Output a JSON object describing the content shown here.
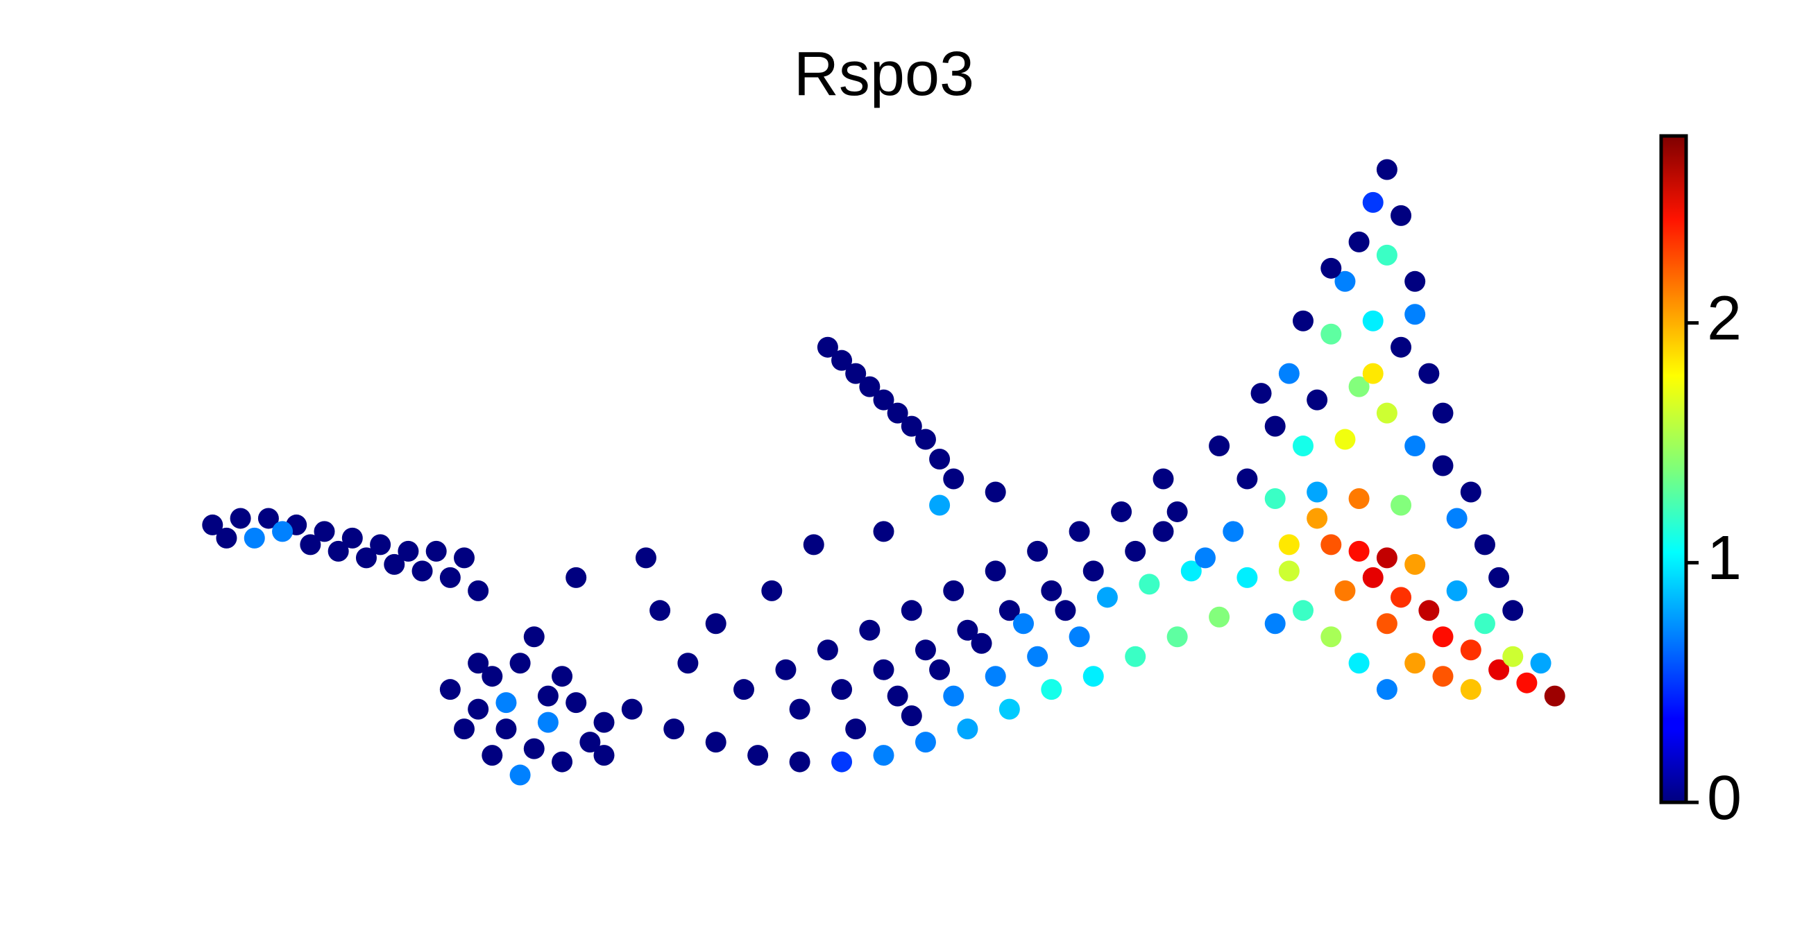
{
  "chart_data": {
    "type": "scatter",
    "title": "Rspo3",
    "colormap": "jet",
    "clim": [
      0,
      2.78
    ],
    "cticks": [
      0,
      1,
      2
    ],
    "xlim": [
      0,
      100
    ],
    "ylim": [
      0,
      100
    ],
    "x": [
      2,
      4,
      6,
      8,
      10,
      12,
      14,
      16,
      18,
      20,
      3,
      5,
      7,
      9,
      11,
      13,
      15,
      17,
      19,
      21,
      19,
      21,
      23,
      25,
      27,
      29,
      30,
      26,
      22,
      24,
      20,
      22,
      24,
      26,
      28,
      23,
      21,
      25,
      27,
      30,
      32,
      35,
      38,
      41,
      44,
      47,
      50,
      53,
      56,
      59,
      62,
      65,
      68,
      71,
      74,
      52,
      55,
      58,
      61,
      64,
      40,
      43,
      46,
      49,
      52,
      55,
      58,
      61,
      64,
      67,
      44,
      47,
      50,
      53,
      56,
      59,
      62,
      65,
      68,
      70,
      48,
      51,
      54,
      57,
      60,
      63,
      66,
      69,
      72,
      70,
      28,
      34,
      38,
      33,
      42,
      45,
      50,
      54,
      58,
      36,
      46,
      47,
      48,
      49,
      50,
      51,
      52,
      53,
      54,
      55,
      86,
      85,
      87,
      84,
      86,
      88,
      83,
      80,
      82,
      85,
      87,
      89,
      79,
      81,
      84,
      86,
      78,
      80,
      83,
      88,
      90,
      76,
      78,
      81,
      84,
      87,
      91,
      93,
      75,
      79,
      82,
      84,
      86,
      88,
      85,
      83,
      87,
      89,
      86,
      90,
      92,
      94,
      96,
      98,
      95,
      93,
      91,
      95,
      97,
      80,
      78,
      82,
      84,
      88,
      90,
      92,
      86,
      76,
      79,
      81,
      94,
      92,
      90,
      88,
      85,
      73,
      71,
      74,
      77,
      82
    ],
    "y": [
      43,
      44,
      44,
      43,
      42,
      41,
      40,
      39,
      39,
      38,
      41,
      41,
      42,
      40,
      39,
      38,
      37,
      36,
      35,
      33,
      18,
      15,
      12,
      9,
      7,
      10,
      13,
      17,
      20,
      22,
      12,
      8,
      5,
      13,
      16,
      16,
      22,
      26,
      20,
      8,
      15,
      12,
      10,
      8,
      7,
      7,
      8,
      10,
      12,
      15,
      18,
      20,
      23,
      26,
      29,
      14,
      17,
      20,
      23,
      26,
      18,
      21,
      24,
      27,
      30,
      33,
      36,
      39,
      42,
      45,
      15,
      18,
      21,
      24,
      27,
      30,
      33,
      36,
      39,
      42,
      12,
      17,
      21,
      25,
      28,
      30,
      32,
      34,
      36,
      50,
      35,
      30,
      28,
      38,
      33,
      40,
      42,
      46,
      48,
      22,
      70,
      68,
      66,
      64,
      62,
      60,
      58,
      56,
      53,
      50,
      97,
      92,
      90,
      86,
      84,
      80,
      80,
      74,
      72,
      74,
      70,
      66,
      66,
      62,
      64,
      60,
      58,
      55,
      56,
      55,
      52,
      50,
      47,
      48,
      47,
      46,
      44,
      40,
      42,
      40,
      40,
      39,
      38,
      37,
      35,
      33,
      32,
      30,
      28,
      26,
      24,
      21,
      19,
      17,
      23,
      28,
      33,
      30,
      22,
      30,
      28,
      26,
      22,
      22,
      20,
      18,
      18,
      35,
      36,
      44,
      35,
      48,
      60,
      75,
      66,
      38,
      45,
      55,
      63,
      82
    ],
    "values": [
      0,
      0,
      0,
      0,
      0,
      0,
      0,
      0,
      0,
      0,
      0,
      0.7,
      0.7,
      0,
      0,
      0,
      0,
      0,
      0,
      0,
      0,
      0,
      0,
      0,
      0,
      0,
      0,
      0,
      0,
      0,
      0,
      0,
      0.7,
      0.7,
      0,
      0.7,
      0,
      0,
      0,
      0,
      0,
      0,
      0,
      0,
      0,
      0.5,
      0.7,
      0.7,
      0.8,
      0.9,
      1.1,
      1.0,
      1.2,
      1.3,
      1.4,
      0,
      0.7,
      0.7,
      0.7,
      0.7,
      0,
      0,
      0,
      0,
      0,
      0,
      0,
      0,
      0,
      0,
      0,
      0,
      0,
      0,
      0,
      0,
      0,
      0,
      0,
      0,
      0,
      0,
      0,
      0,
      0.7,
      0,
      0.8,
      1.2,
      1.0,
      0,
      0,
      0,
      0,
      0,
      0,
      0,
      0,
      0.8,
      0,
      0,
      0,
      0,
      0,
      0,
      0,
      0,
      0,
      0,
      0,
      0,
      0,
      0.5,
      0,
      0,
      1.2,
      0,
      0.7,
      0,
      1.3,
      1.0,
      0,
      0,
      0.7,
      0,
      1.4,
      1.6,
      0,
      1.1,
      1.7,
      0.7,
      0,
      0,
      1.2,
      0.8,
      2.1,
      1.4,
      0.7,
      0,
      0.7,
      1.8,
      2.2,
      2.4,
      2.6,
      2.0,
      2.5,
      2.1,
      2.3,
      2.6,
      2.2,
      2.4,
      2.3,
      2.5,
      2.4,
      2.7,
      1.6,
      1.2,
      0.8,
      0,
      0.8,
      1.2,
      0.7,
      1.5,
      1.0,
      2.0,
      2.2,
      1.9,
      0.7,
      1.0,
      1.6,
      2.0,
      0,
      0,
      0,
      0.7,
      1.8,
      0.7,
      0,
      0,
      0,
      0
    ]
  }
}
